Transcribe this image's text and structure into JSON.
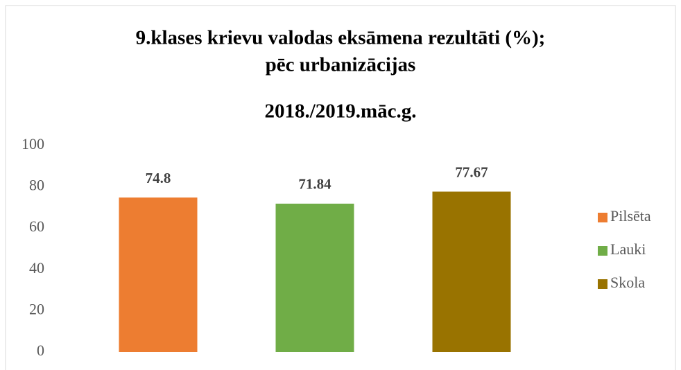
{
  "chart_data": {
    "type": "bar",
    "title": [
      "9.klases krievu valodas eksāmena rezultāti (%);",
      "pēc urbanizācijas"
    ],
    "subtitle": "2018./2019.māc.g.",
    "categories": [
      null
    ],
    "series": [
      {
        "name": "Pilsēta",
        "color": "#ed7d31",
        "values": [
          74.8
        ]
      },
      {
        "name": "Lauki",
        "color": "#70ad47",
        "values": [
          71.84
        ]
      },
      {
        "name": "Skola",
        "color": "#997300",
        "values": [
          77.67
        ]
      }
    ],
    "ylim": [
      0,
      100
    ],
    "yticks": [
      0,
      20,
      40,
      60,
      80,
      100
    ],
    "grid": false,
    "legend": "right"
  }
}
